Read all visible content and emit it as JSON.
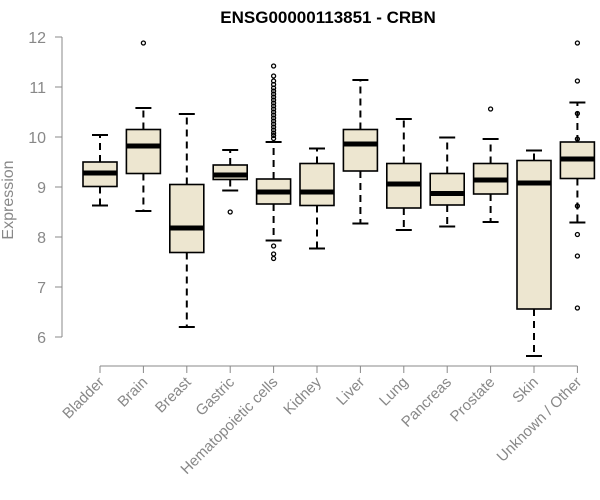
{
  "chart_data": {
    "type": "boxplot",
    "title": "ENSG00000113851 - CRBN",
    "xlabel": "",
    "ylabel": "Expression",
    "ylim": [
      6,
      12
    ],
    "yticks": [
      "6",
      "7",
      "8",
      "9",
      "10",
      "11",
      "12"
    ],
    "grid": false,
    "colors": {
      "box_fill": "#ede6d0",
      "stroke": "#000000",
      "axis": "#888888"
    },
    "categories": [
      {
        "label": "Bladder",
        "min": 8.63,
        "q1": 9.01,
        "median": 9.28,
        "q3": 9.5,
        "max": 10.04,
        "outliers": []
      },
      {
        "label": "Brain",
        "min": 8.52,
        "q1": 9.27,
        "median": 9.82,
        "q3": 10.15,
        "max": 10.58,
        "outliers": [
          11.88
        ]
      },
      {
        "label": "Breast",
        "min": 6.2,
        "q1": 7.69,
        "median": 8.18,
        "q3": 9.05,
        "max": 10.46,
        "outliers": []
      },
      {
        "label": "Gastric",
        "min": 8.93,
        "q1": 9.15,
        "median": 9.24,
        "q3": 9.44,
        "max": 9.74,
        "outliers": [
          8.5
        ]
      },
      {
        "label": "Hematopoietic cells",
        "min": 7.93,
        "q1": 8.66,
        "median": 8.9,
        "q3": 9.16,
        "max": 9.9,
        "outliers": [
          11.42,
          11.22,
          11.12,
          11.05,
          10.98,
          10.92,
          10.86,
          10.8,
          10.74,
          10.68,
          10.62,
          10.56,
          10.5,
          10.44,
          10.38,
          10.32,
          10.26,
          10.2,
          10.14,
          10.08,
          10.03,
          9.97,
          7.82,
          7.66,
          7.57
        ]
      },
      {
        "label": "Kidney",
        "min": 7.77,
        "q1": 8.63,
        "median": 8.9,
        "q3": 9.47,
        "max": 9.77,
        "outliers": []
      },
      {
        "label": "Liver",
        "min": 8.27,
        "q1": 9.32,
        "median": 9.86,
        "q3": 10.15,
        "max": 11.14,
        "outliers": []
      },
      {
        "label": "Lung",
        "min": 8.14,
        "q1": 8.58,
        "median": 9.06,
        "q3": 9.47,
        "max": 10.36,
        "outliers": []
      },
      {
        "label": "Pancreas",
        "min": 8.21,
        "q1": 8.64,
        "median": 8.87,
        "q3": 9.27,
        "max": 9.99,
        "outliers": []
      },
      {
        "label": "Prostate",
        "min": 8.3,
        "q1": 8.86,
        "median": 9.14,
        "q3": 9.47,
        "max": 9.96,
        "outliers": [
          10.56
        ]
      },
      {
        "label": "Skin",
        "min": 5.62,
        "q1": 6.56,
        "median": 9.08,
        "q3": 9.53,
        "max": 9.73,
        "outliers": []
      },
      {
        "label": "Unknown / Other",
        "min": 8.29,
        "q1": 9.17,
        "median": 9.56,
        "q3": 9.9,
        "max": 10.69,
        "outliers": [
          11.88,
          11.12,
          10.47,
          9.96,
          8.62,
          8.05,
          7.62,
          6.58
        ]
      }
    ]
  }
}
